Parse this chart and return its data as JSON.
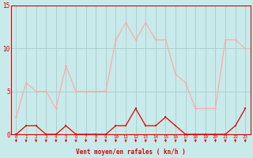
{
  "x": [
    0,
    1,
    2,
    3,
    4,
    5,
    6,
    7,
    8,
    9,
    10,
    11,
    12,
    13,
    14,
    15,
    16,
    17,
    18,
    19,
    20,
    21,
    22,
    23
  ],
  "wind_avg": [
    0,
    1,
    1,
    0,
    0,
    1,
    0,
    0,
    0,
    0,
    1,
    1,
    3,
    1,
    1,
    2,
    1,
    0,
    0,
    0,
    0,
    0,
    1,
    3
  ],
  "wind_gust": [
    2,
    6,
    5,
    5,
    3,
    8,
    5,
    5,
    5,
    5,
    11,
    13,
    11,
    13,
    11,
    11,
    7,
    6,
    3,
    3,
    3,
    11,
    11,
    10
  ],
  "line_color_avg": "#dd0000",
  "line_color_gust": "#ffaaaa",
  "bg_color": "#c8eaea",
  "grid_color": "#aacccc",
  "xlabel": "Vent moyen/en rafales ( kn/h )",
  "xlabel_color": "#dd0000",
  "tick_color": "#dd0000",
  "ylim": [
    0,
    15
  ],
  "yticks": [
    0,
    5,
    10,
    15
  ],
  "xlim": [
    -0.5,
    23.5
  ]
}
